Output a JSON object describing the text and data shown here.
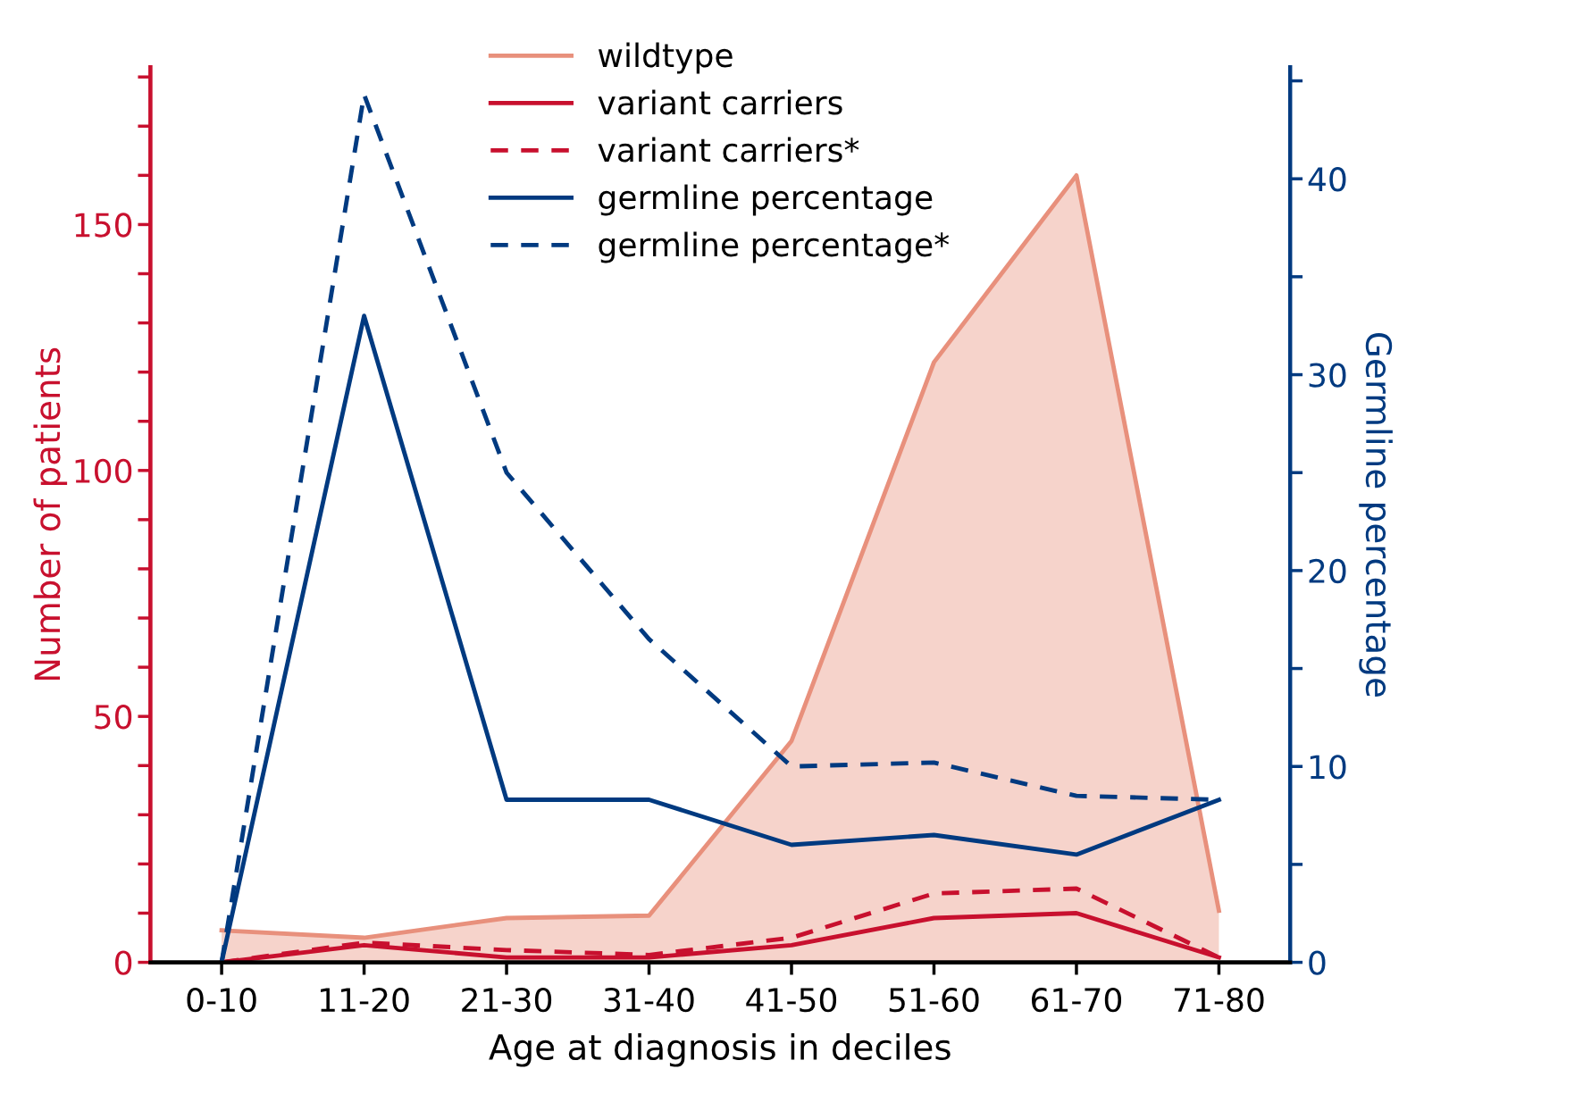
{
  "chart_data": {
    "type": "line",
    "xlabel": "Age at diagnosis in deciles",
    "ylabel": "Number of patients",
    "y2label": "Germline percentage",
    "categories": [
      "0-10",
      "11-20",
      "21-30",
      "31-40",
      "41-50",
      "51-60",
      "61-70",
      "71-80"
    ],
    "series": [
      {
        "name": "wildtype",
        "type": "area",
        "color": "#e8907c",
        "values": [
          6.5,
          5,
          9,
          9.5,
          45,
          122,
          160,
          10.5
        ]
      },
      {
        "name": "variant carriers",
        "color": "#c8102e",
        "line_style": "solid",
        "values": [
          0,
          3.5,
          1,
          1,
          3.5,
          9,
          10,
          1
        ]
      },
      {
        "name": "variant carriers*",
        "color": "#c8102e",
        "line_style": "dashed",
        "values": [
          0,
          4,
          2.5,
          1.5,
          5,
          14,
          15,
          1
        ]
      },
      {
        "name": "germline percentage",
        "color": "#003a80",
        "line_style": "solid",
        "axis": "y2",
        "values": [
          0,
          33,
          8.3,
          8.3,
          6,
          6.5,
          5.5,
          8.3
        ]
      },
      {
        "name": "germline percentage*",
        "color": "#003a80",
        "line_style": "dashed",
        "axis": "y2",
        "values": [
          0,
          44.3,
          25,
          16.5,
          10,
          10.2,
          8.5,
          8.3
        ]
      }
    ],
    "ylim": [
      0,
      182
    ],
    "yticks": [
      0,
      {
        "value": 10,
        "label": null
      },
      {
        "value": 20,
        "label": null
      },
      {
        "value": 30,
        "label": null
      },
      {
        "value": 40,
        "label": null
      },
      50,
      {
        "value": 60,
        "label": null
      },
      {
        "value": 70,
        "label": null
      },
      {
        "value": 80,
        "label": null
      },
      {
        "value": 90,
        "label": null
      },
      100,
      {
        "value": 110,
        "label": null
      },
      {
        "value": 120,
        "label": null
      },
      {
        "value": 130,
        "label": null
      },
      {
        "value": 140,
        "label": null
      },
      150,
      {
        "value": 160,
        "label": null
      },
      {
        "value": 170,
        "label": null
      },
      {
        "value": 180,
        "label": null
      }
    ],
    "y2lim": [
      0,
      45.7
    ],
    "y2ticks": [
      0,
      {
        "value": 5,
        "label": null
      },
      10,
      {
        "value": 15,
        "label": null
      },
      20,
      {
        "value": 25,
        "label": null
      },
      30,
      {
        "value": 35,
        "label": null
      },
      40,
      {
        "value": 45,
        "label": null
      }
    ],
    "grid": false,
    "legend": "top"
  }
}
